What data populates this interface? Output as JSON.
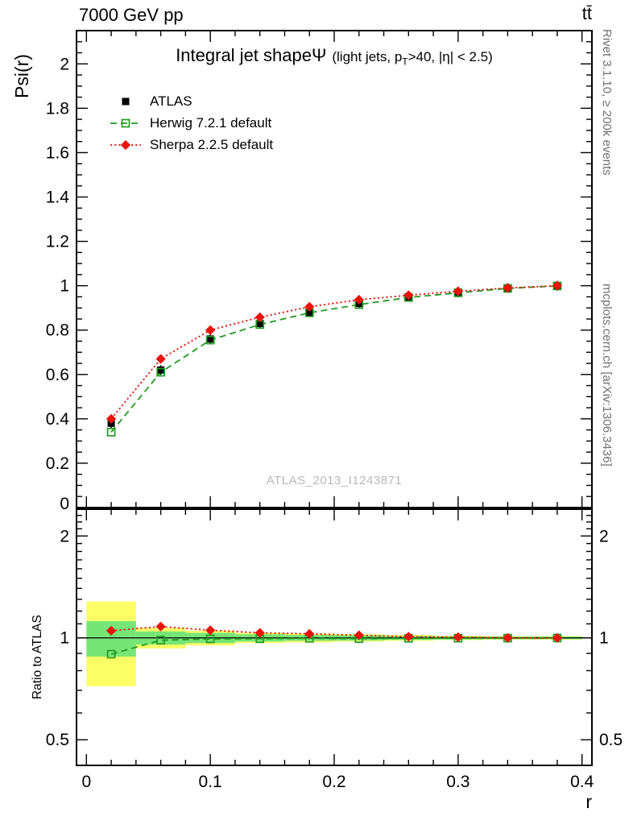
{
  "header": {
    "left": "7000 GeV pp",
    "right": "tt̄"
  },
  "title": {
    "main": "Integral jet shape",
    "psi": "Ψ",
    "cuts_pre": "(light jets, p",
    "cuts_sub": "T",
    "cuts_post": ">40, |η| < 2.5)"
  },
  "watermark": "ATLAS_2013_I1243871",
  "side": {
    "rivet": "Rivet 3.1.10, ≥ 200k events",
    "mcplots": "mcplots.cern.ch [arXiv:1306.3436]"
  },
  "axes": {
    "y_top": "Psi(r)",
    "y_bottom": "Ratio to ATLAS",
    "x": "r"
  },
  "chart_data": [
    {
      "type": "line",
      "title": "Integral jet shape Ψ (light jets, pT>40, |η| < 2.5)",
      "xlabel": "r",
      "ylabel": "Psi(r)",
      "xlim": [
        -0.008,
        0.408
      ],
      "ylim": [
        0,
        2.15
      ],
      "yticks": [
        0,
        0.2,
        0.4,
        0.6,
        0.8,
        1.0,
        1.2,
        1.4,
        1.6,
        1.8,
        2.0
      ],
      "x": [
        0.02,
        0.06,
        0.1,
        0.14,
        0.18,
        0.22,
        0.26,
        0.3,
        0.34,
        0.38
      ],
      "series": [
        {
          "name": "ATLAS",
          "marker": "filled-square",
          "color": "#000000",
          "line": "none",
          "values": [
            0.38,
            0.62,
            0.76,
            0.83,
            0.88,
            0.92,
            0.95,
            0.97,
            0.99,
            1.0
          ]
        },
        {
          "name": "Herwig 7.2.1 default",
          "marker": "open-square",
          "color": "#229922",
          "line": "dashed",
          "values": [
            0.34,
            0.61,
            0.755,
            0.825,
            0.878,
            0.915,
            0.947,
            0.968,
            0.988,
            0.999
          ]
        },
        {
          "name": "Sherpa 2.2.5 default",
          "marker": "filled-diamond",
          "color": "#e8130c",
          "line": "dotted",
          "values": [
            0.4,
            0.67,
            0.8,
            0.858,
            0.905,
            0.937,
            0.957,
            0.975,
            0.99,
            1.0
          ]
        }
      ]
    },
    {
      "type": "ratio",
      "ylabel": "Ratio to ATLAS",
      "yscale": "log",
      "ylim": [
        0.42,
        2.4
      ],
      "yticks": [
        0.5,
        1,
        2
      ],
      "xticks": [
        0,
        0.1,
        0.2,
        0.3,
        0.4
      ],
      "x": [
        0.02,
        0.06,
        0.1,
        0.14,
        0.18,
        0.22,
        0.26,
        0.3,
        0.34,
        0.38
      ],
      "bin_half_width": 0.02,
      "bands": [
        {
          "name": "atlas-uncertainty-outer",
          "color": "#ffff66",
          "half_width": [
            0.28,
            0.07,
            0.05,
            0.035,
            0.03,
            0.025,
            0.02,
            0.015,
            0.012,
            0.012
          ]
        },
        {
          "name": "atlas-uncertainty-inner",
          "color": "#76e576",
          "half_width": [
            0.12,
            0.045,
            0.035,
            0.025,
            0.02,
            0.018,
            0.014,
            0.011,
            0.009,
            0.009
          ]
        }
      ],
      "series": [
        {
          "name": "Herwig 7.2.1 default",
          "marker": "open-square",
          "color": "#229922",
          "line": "dashed",
          "values": [
            0.895,
            0.984,
            0.993,
            0.994,
            0.997,
            0.995,
            0.997,
            0.998,
            0.998,
            0.999
          ]
        },
        {
          "name": "Sherpa 2.2.5 default",
          "marker": "filled-diamond",
          "color": "#e8130c",
          "line": "dotted",
          "values": [
            1.05,
            1.08,
            1.053,
            1.035,
            1.028,
            1.018,
            1.008,
            1.005,
            1.0,
            1.0
          ]
        }
      ]
    }
  ]
}
